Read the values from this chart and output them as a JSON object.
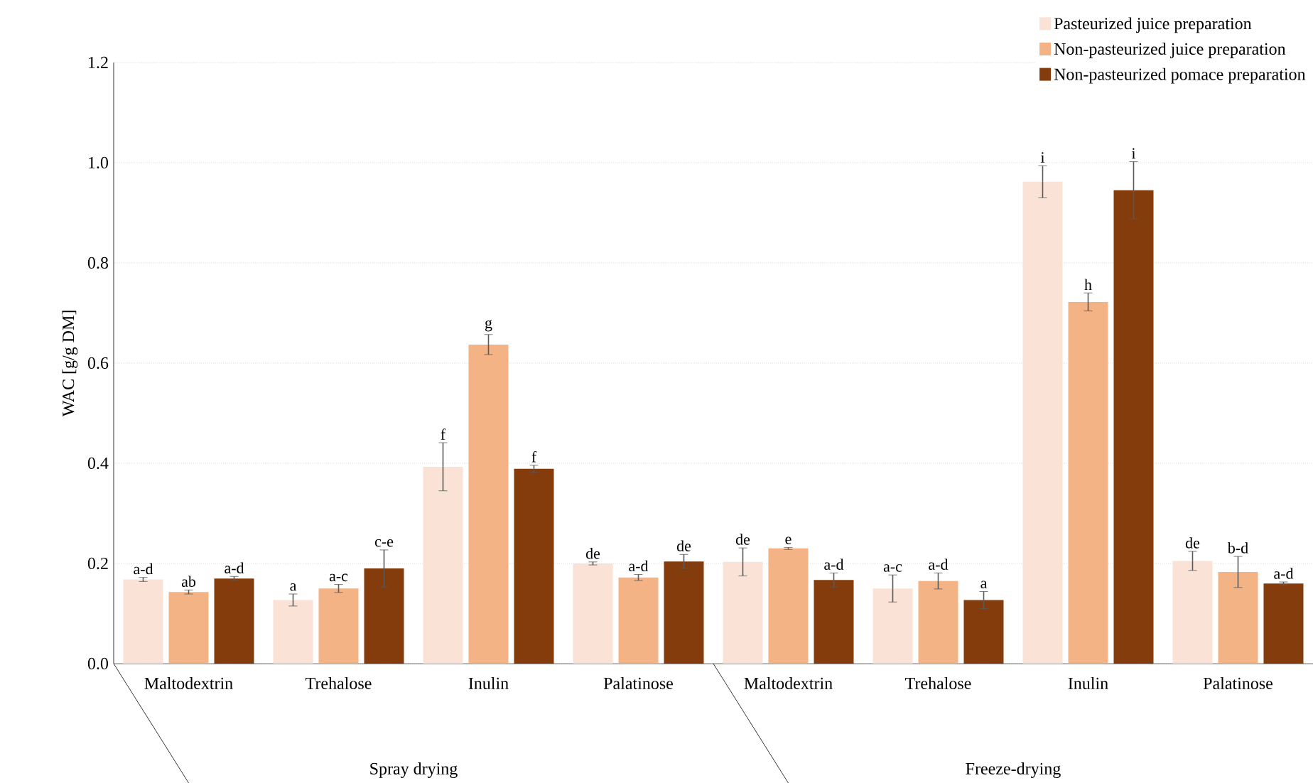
{
  "chart_data": {
    "type": "bar",
    "ylabel": "WAC [g/g DM]",
    "categories": [
      "Maltodextrin",
      "Trehalose",
      "Inulin",
      "Palatinose",
      "Maltodextrin",
      "Trehalose",
      "Inulin",
      "Palatinose"
    ],
    "annotations": [
      "Spray drying",
      "Freeze-drying"
    ],
    "series": [
      {
        "name": "Pasteurized juice preparation",
        "color": "#fae3d6",
        "values": [
          0.168,
          0.127,
          0.393,
          0.2,
          0.203,
          0.15,
          0.962,
          0.205
        ],
        "errors": [
          0.004,
          0.012,
          0.048,
          0.003,
          0.028,
          0.027,
          0.032,
          0.019
        ],
        "value_labels": [
          "a-d",
          "a",
          "f",
          "de",
          "de",
          "a-c",
          "i",
          "de"
        ]
      },
      {
        "name": "Non-pasteurized juice preparation",
        "color": "#f3b385",
        "values": [
          0.143,
          0.15,
          0.637,
          0.172,
          0.23,
          0.165,
          0.722,
          0.183
        ],
        "errors": [
          0.004,
          0.008,
          0.02,
          0.006,
          0.002,
          0.016,
          0.018,
          0.031
        ],
        "value_labels": [
          "ab",
          "a-c",
          "g",
          "a-d",
          "e",
          "a-d",
          "h",
          "b-d"
        ]
      },
      {
        "name": "Non-pasteurized pomace preparation",
        "color": "#843c0c",
        "values": [
          0.17,
          0.19,
          0.389,
          0.204,
          0.167,
          0.127,
          0.945,
          0.16
        ],
        "errors": [
          0.004,
          0.037,
          0.007,
          0.014,
          0.014,
          0.017,
          0.057,
          0.003
        ],
        "value_labels": [
          "a-d",
          "c-e",
          "f",
          "de",
          "a-d",
          "a",
          "i",
          "a-d"
        ]
      }
    ],
    "ylim": [
      0,
      1.2
    ],
    "yticks": [
      {
        "value": 0,
        "label": "0.0"
      },
      {
        "value": 0.2,
        "label": "0.2"
      },
      {
        "value": 0.4,
        "label": "0.4"
      },
      {
        "value": 0.6,
        "label": "0.6"
      },
      {
        "value": 0.8,
        "label": "0.8"
      },
      {
        "value": 1.0,
        "label": "1.0"
      },
      {
        "value": 1.2,
        "label": "1.2"
      }
    ],
    "grid": "y",
    "legend": "top right"
  }
}
